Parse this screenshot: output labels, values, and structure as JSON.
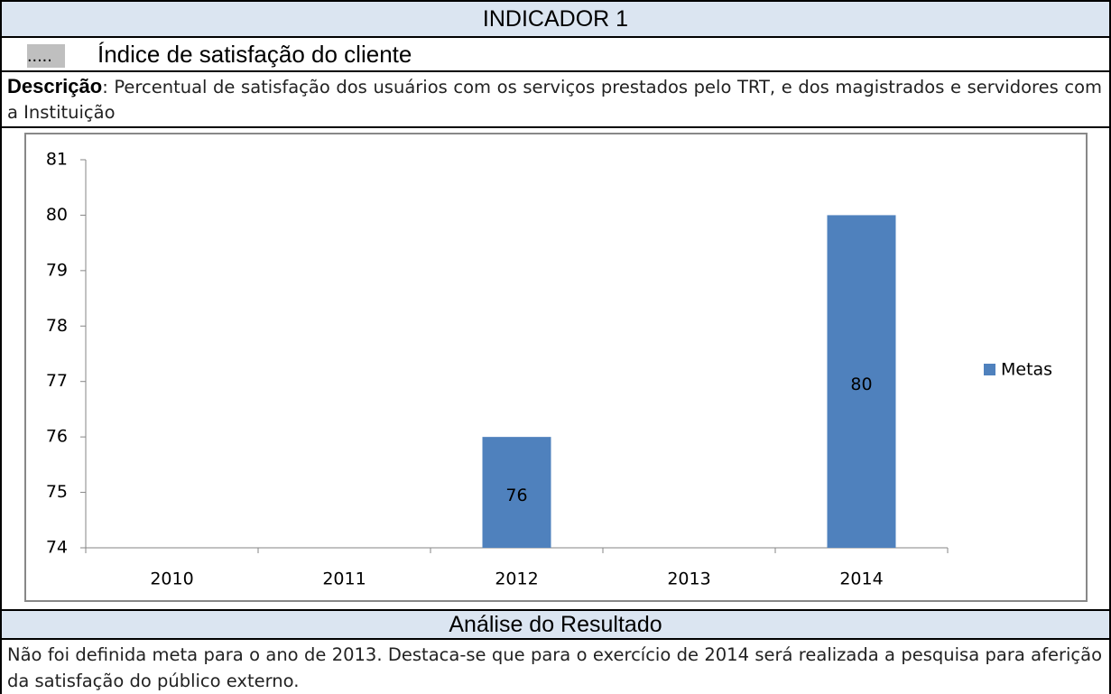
{
  "header": {
    "title": "INDICADOR 1",
    "prefix": ".....",
    "name": "Índice de satisfação do cliente"
  },
  "description": {
    "label": "Descrição",
    "text": ": Percentual de satisfação dos usuários com os serviços prestados pelo TRT, e dos magistrados e servidores com a Instituição"
  },
  "chart_data": {
    "type": "bar",
    "categories": [
      "2010",
      "2011",
      "2012",
      "2013",
      "2014"
    ],
    "series": [
      {
        "name": "Metas",
        "color": "#4f81bd",
        "values": [
          null,
          null,
          76,
          null,
          80
        ]
      }
    ],
    "ylim": [
      74,
      81
    ],
    "yticks": [
      74,
      75,
      76,
      77,
      78,
      79,
      80,
      81
    ],
    "grid": false,
    "legend": "right",
    "data_labels": true
  },
  "analysis": {
    "title": "Análise do Resultado",
    "text": "Não foi definida meta para o ano de 2013. Destaca-se que para o exercício de 2014 será realizada a pesquisa para aferição da satisfação do público externo."
  }
}
